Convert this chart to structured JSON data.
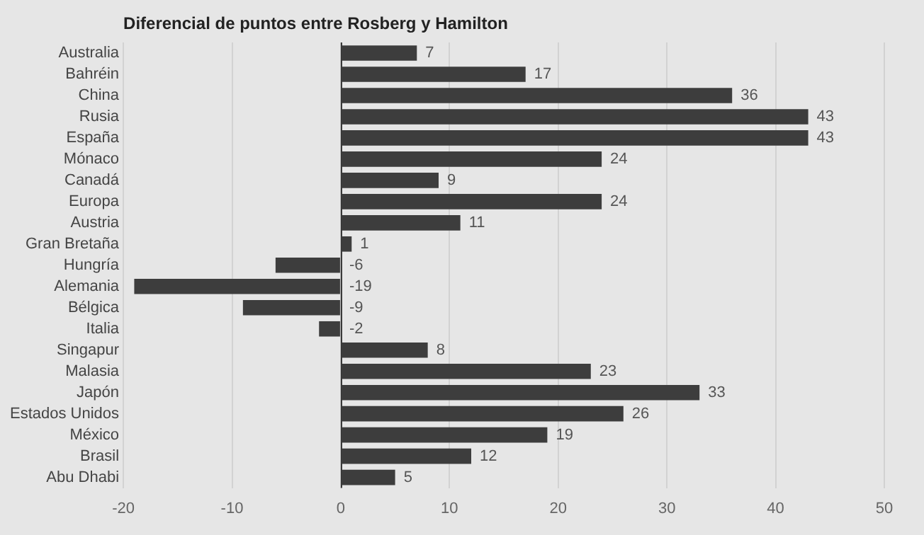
{
  "chart_data": {
    "type": "bar",
    "orientation": "horizontal",
    "title": "Diferencial de puntos entre Rosberg y Hamilton",
    "categories": [
      "Australia",
      "Bahréin",
      "China",
      "Rusia",
      "España",
      "Mónaco",
      "Canadá",
      "Europa",
      "Austria",
      "Gran Bretaña",
      "Hungría",
      "Alemania",
      "Bélgica",
      "Italia",
      "Singapur",
      "Malasia",
      "Japón",
      "Estados Unidos",
      "México",
      "Brasil",
      "Abu Dhabi"
    ],
    "values": [
      7,
      17,
      36,
      43,
      43,
      24,
      9,
      24,
      11,
      1,
      -6,
      -19,
      -9,
      -2,
      8,
      23,
      33,
      26,
      19,
      12,
      5
    ],
    "color": "#3d3d3d",
    "xlim": [
      -20,
      50
    ],
    "xticks": [
      -20,
      -10,
      0,
      10,
      20,
      30,
      40,
      50
    ],
    "grid": "x",
    "legend": false,
    "data_labels": true
  }
}
